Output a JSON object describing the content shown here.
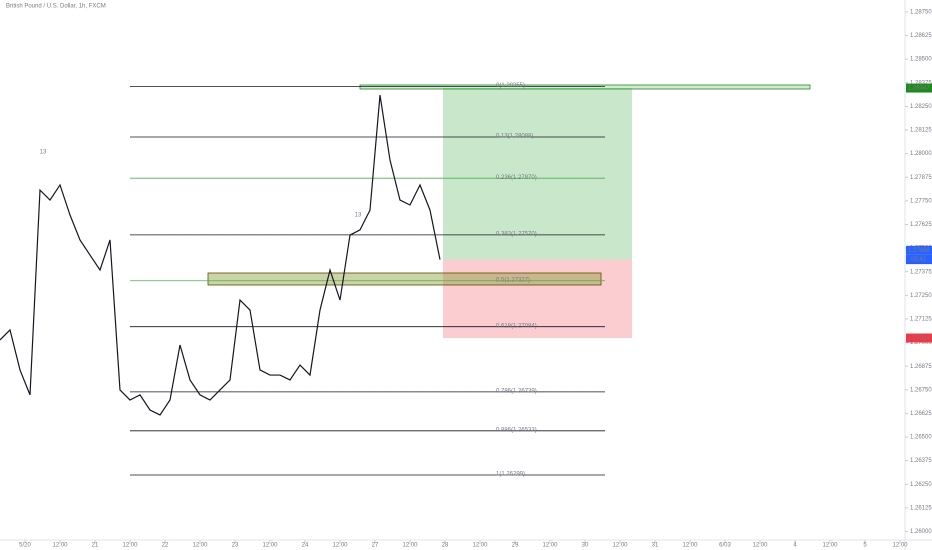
{
  "chart_data": {
    "type": "line",
    "title": "British Pound / U.S. Dollar, 1h, FXCM",
    "x": [
      0,
      1,
      2,
      3,
      4,
      5,
      6,
      7,
      8,
      9,
      10,
      11,
      12,
      13,
      14,
      15,
      16,
      17,
      18,
      19,
      20,
      21,
      22,
      23,
      24,
      25,
      26,
      27,
      28,
      29,
      30,
      31,
      32,
      33,
      34,
      35,
      36,
      37,
      38,
      39,
      40,
      41,
      42,
      43,
      44
    ],
    "series": [
      {
        "color": "#131722",
        "values": [
          1.27014,
          1.27067,
          1.26855,
          1.26723,
          1.27807,
          1.27754,
          1.27834,
          1.27675,
          1.27543,
          1.27463,
          1.27384,
          1.27543,
          1.26749,
          1.26696,
          1.26723,
          1.26643,
          1.26617,
          1.26696,
          1.26987,
          1.26802,
          1.26723,
          1.26696,
          1.26749,
          1.26802,
          1.27225,
          1.27172,
          1.26855,
          1.26828,
          1.26828,
          1.26802,
          1.26881,
          1.26828,
          1.27172,
          1.27384,
          1.27225,
          1.27569,
          1.27596,
          1.27701,
          1.2831,
          1.27966,
          1.27754,
          1.27728,
          1.27834,
          1.27701,
          1.27439
        ]
      }
    ],
    "xlim": [
      0,
      90.5
    ],
    "ylim": [
      1.25955,
      1.28813
    ],
    "xticks": [
      {
        "value": 2.5,
        "label": "5/20"
      },
      {
        "value": 6,
        "label": "12:00"
      },
      {
        "value": 9.5,
        "label": "21"
      },
      {
        "value": 13,
        "label": "12:00"
      },
      {
        "value": 16.5,
        "label": "22"
      },
      {
        "value": 20,
        "label": "12:00"
      },
      {
        "value": 23.5,
        "label": "23"
      },
      {
        "value": 27,
        "label": "12:00"
      },
      {
        "value": 30.5,
        "label": "24"
      },
      {
        "value": 34,
        "label": "12:00"
      },
      {
        "value": 37.5,
        "label": "27"
      },
      {
        "value": 41,
        "label": "12:00"
      },
      {
        "value": 44.5,
        "label": "28"
      },
      {
        "value": 48,
        "label": "12:00"
      },
      {
        "value": 51.5,
        "label": "29"
      },
      {
        "value": 55,
        "label": "12:00"
      },
      {
        "value": 58.5,
        "label": "30"
      },
      {
        "value": 62,
        "label": "12:00"
      },
      {
        "value": 65.5,
        "label": "31"
      },
      {
        "value": 69,
        "label": "12:00"
      },
      {
        "value": 72.5,
        "label": "6/03"
      },
      {
        "value": 76,
        "label": "12:00"
      },
      {
        "value": 79.5,
        "label": "4"
      },
      {
        "value": 83,
        "label": "12:00"
      },
      {
        "value": 86.5,
        "label": "5"
      },
      {
        "value": 90,
        "label": "12:00"
      }
    ],
    "yticks": [
      {
        "value": 1.26,
        "label": "1.26000"
      },
      {
        "value": 1.26125,
        "label": "1.26125"
      },
      {
        "value": 1.2625,
        "label": "1.26250"
      },
      {
        "value": 1.26375,
        "label": "1.26375"
      },
      {
        "value": 1.265,
        "label": "1.26500"
      },
      {
        "value": 1.26625,
        "label": "1.26625"
      },
      {
        "value": 1.2675,
        "label": "1.26750"
      },
      {
        "value": 1.26875,
        "label": "1.26875"
      },
      {
        "value": 1.27,
        "label": "1.27000"
      },
      {
        "value": 1.27125,
        "label": "1.27125"
      },
      {
        "value": 1.2725,
        "label": "1.27250"
      },
      {
        "value": 1.27375,
        "label": "1.27375"
      },
      {
        "value": 1.275,
        "label": "1.27500"
      },
      {
        "value": 1.27625,
        "label": "1.27625"
      },
      {
        "value": 1.2775,
        "label": "1.27750"
      },
      {
        "value": 1.27875,
        "label": "1.27875"
      },
      {
        "value": 1.28,
        "label": "1.28000"
      },
      {
        "value": 1.28125,
        "label": "1.28125"
      },
      {
        "value": 1.2825,
        "label": "1.28250"
      },
      {
        "value": 1.28375,
        "label": "1.28375"
      },
      {
        "value": 1.285,
        "label": "1.28500"
      },
      {
        "value": 1.28625,
        "label": "1.28625"
      },
      {
        "value": 1.2875,
        "label": "1.28750"
      }
    ],
    "fib_levels": [
      {
        "price": 1.28355,
        "label": "0(1.28355)",
        "color": "#131722"
      },
      {
        "price": 1.28088,
        "label": "0.13(1.28088)",
        "color": "#131722"
      },
      {
        "price": 1.2787,
        "label": "0.236(1.27870)",
        "color": "#4caf50"
      },
      {
        "price": 1.2757,
        "label": "0.382(1.27570)",
        "color": "#131722"
      },
      {
        "price": 1.27327,
        "label": "0.5(1.27327)",
        "color": "#4caf50"
      },
      {
        "price": 1.27084,
        "label": "0.618(1.27084)",
        "color": "#131722"
      },
      {
        "price": 1.26739,
        "label": "0.786(1.26739)",
        "color": "#131722"
      },
      {
        "price": 1.26533,
        "label": "0.886(1.26533)",
        "color": "#131722"
      },
      {
        "price": 1.26299,
        "label": "1(1.26299)",
        "color": "#131722"
      }
    ],
    "fib_x": [
      13,
      60.5
    ],
    "position": {
      "x": [
        44.3,
        63.2
      ],
      "target": 1.28347,
      "entry": 1.27439,
      "stop": 1.27024
    },
    "price_labels": [
      {
        "price": 1.28347,
        "label": "1.28347",
        "color": "#1e8a1e"
      },
      {
        "price": 1.27488,
        "label": "1.27488",
        "color": "#2962ff"
      },
      {
        "price": 1.27439,
        "label": "1.27439",
        "color": "#434651"
      },
      {
        "price": 1.27024,
        "label": "1.27024",
        "color": "#f23645"
      }
    ],
    "countdown": "05:42",
    "annotations": [
      {
        "text": "13",
        "x": 4.3,
        "price": 1.28008
      },
      {
        "text": "13",
        "x": 35.8,
        "price": 1.27675
      }
    ]
  }
}
